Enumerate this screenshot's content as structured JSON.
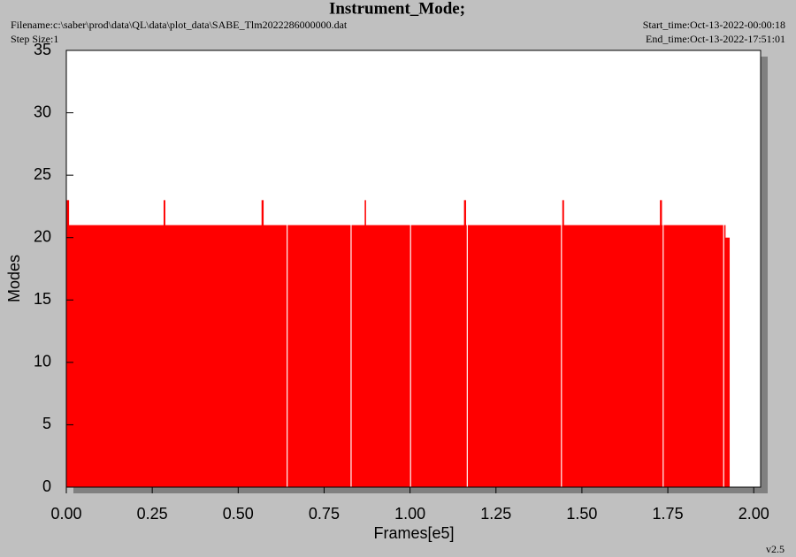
{
  "header": {
    "filename": "Filename:c:\\saber\\prod\\data\\QL\\data\\plot_data\\SABE_Tlm2022286000000.dat",
    "step_size": "Step Size:1",
    "start_time": "Start_time:Oct-13-2022-00:00:18",
    "end_time": "End_time:Oct-13-2022-17:51:01",
    "version": "v2.5"
  },
  "chart_data": {
    "type": "area",
    "title": "Instrument_Mode;",
    "x_label": "Frames[e5]",
    "y_label": "Modes",
    "x": [
      0,
      0.008,
      0.008,
      0.283,
      0.283,
      0.288,
      0.288,
      0.568,
      0.568,
      0.574,
      0.574,
      0.641,
      0.641,
      0.644,
      0.644,
      0.827,
      0.827,
      0.83,
      0.83,
      0.868,
      0.868,
      0.872,
      0.872,
      1.0,
      1.0,
      1.003,
      1.003,
      1.157,
      1.157,
      1.163,
      1.163,
      1.165,
      1.165,
      1.168,
      1.168,
      1.439,
      1.439,
      1.442,
      1.442,
      1.443,
      1.443,
      1.448,
      1.448,
      1.727,
      1.727,
      1.733,
      1.733,
      1.735,
      1.735,
      1.738,
      1.738,
      1.911,
      1.911,
      1.914,
      1.914,
      1.918,
      1.918,
      1.93,
      1.93
    ],
    "series": [
      {
        "color": "#ff0000",
        "values": [
          23,
          23,
          21,
          21,
          23,
          23,
          21,
          21,
          23,
          23,
          21,
          21,
          0,
          0,
          21,
          21,
          0,
          0,
          21,
          21,
          23,
          23,
          21,
          21,
          0,
          0,
          21,
          21,
          23,
          23,
          21,
          21,
          0,
          0,
          21,
          21,
          0,
          0,
          21,
          21,
          23,
          23,
          21,
          21,
          23,
          23,
          21,
          21,
          0,
          0,
          21,
          21,
          0,
          0,
          21,
          21,
          20,
          20,
          0
        ]
      }
    ],
    "xlim": [
      0,
      2.02
    ],
    "ylim": [
      0,
      35
    ],
    "xticks": [
      {
        "value": 0,
        "label": "0.00"
      },
      {
        "value": 0.25,
        "label": "0.25"
      },
      {
        "value": 0.5,
        "label": "0.50"
      },
      {
        "value": 0.75,
        "label": "0.75"
      },
      {
        "value": 1,
        "label": "1.00"
      },
      {
        "value": 1.25,
        "label": "1.25"
      },
      {
        "value": 1.5,
        "label": "1.50"
      },
      {
        "value": 1.75,
        "label": "1.75"
      },
      {
        "value": 2,
        "label": "2.00"
      }
    ],
    "yticks": [
      0,
      5,
      10,
      15,
      20,
      25,
      30,
      35
    ]
  }
}
